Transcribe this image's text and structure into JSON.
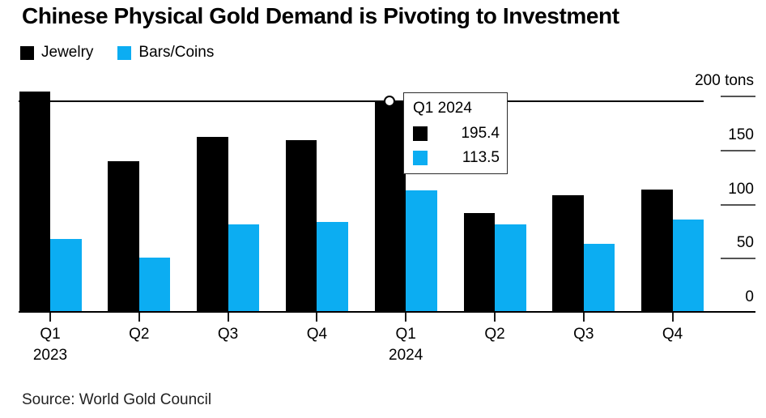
{
  "title": "Chinese Physical Gold Demand is Pivoting to Investment",
  "source": "Source: World Gold Council",
  "legend": {
    "items": [
      {
        "label": "Jewelry",
        "color": "#000000"
      },
      {
        "label": "Bars/Coins",
        "color": "#0cadf2"
      }
    ]
  },
  "y_axis": {
    "tick_values": [
      0,
      50,
      100,
      150,
      200
    ],
    "tick_labels": [
      "0",
      "50",
      "100",
      "150",
      "200 tons"
    ]
  },
  "x_axis": {
    "ticks": [
      {
        "label": "Q1",
        "year": "2023"
      },
      {
        "label": "Q2"
      },
      {
        "label": "Q3"
      },
      {
        "label": "Q4"
      },
      {
        "label": "Q1",
        "year": "2024"
      },
      {
        "label": "Q2"
      },
      {
        "label": "Q3"
      },
      {
        "label": "Q4"
      }
    ]
  },
  "tooltip": {
    "title": "Q1 2024",
    "rows": [
      {
        "series": "Jewelry",
        "value": "195.4",
        "color": "#000000"
      },
      {
        "series": "Bars/Coins",
        "value": "113.5",
        "color": "#0cadf2"
      }
    ]
  },
  "chart_data": {
    "type": "bar",
    "title": "Chinese Physical Gold Demand is Pivoting to Investment",
    "categories": [
      "Q1 2023",
      "Q2 2023",
      "Q3 2023",
      "Q4 2023",
      "Q1 2024",
      "Q2 2024",
      "Q3 2024",
      "Q4 2024"
    ],
    "series": [
      {
        "name": "Jewelry",
        "color": "#000000",
        "values": [
          205,
          140,
          163,
          160,
          195.4,
          92,
          109,
          114
        ]
      },
      {
        "name": "Bars/Coins",
        "color": "#0cadf2",
        "values": [
          68,
          51,
          82,
          84,
          113.5,
          82,
          64,
          86
        ]
      }
    ],
    "ylabel": "tons",
    "ylim": [
      0,
      200
    ],
    "grid": false,
    "legend_position": "top-left",
    "highlighted_category": "Q1 2024",
    "highlight_values": {
      "Jewelry": 195.4,
      "Bars/Coins": 113.5
    }
  }
}
